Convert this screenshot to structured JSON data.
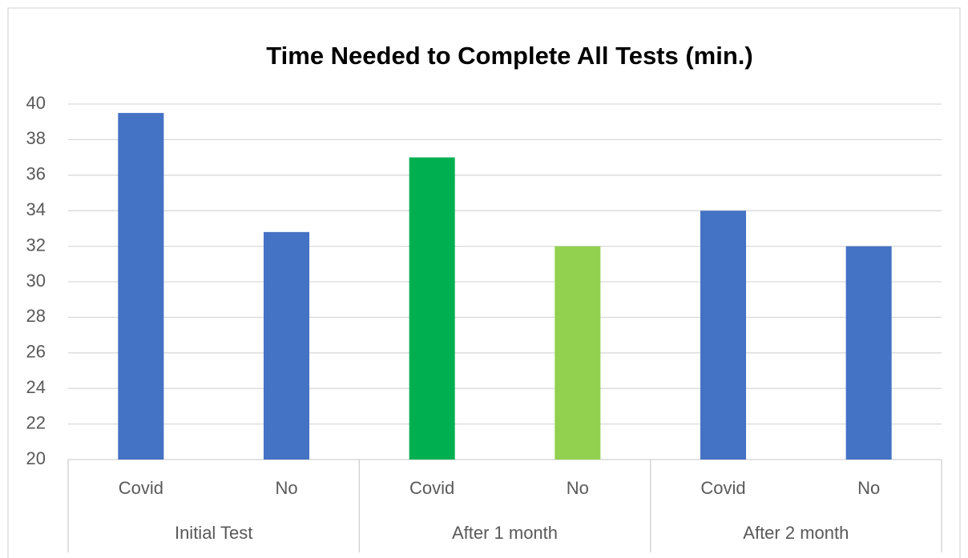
{
  "chart_data": {
    "type": "bar",
    "title": "Time Needed to Complete All Tests (min.)",
    "categories": [
      "Covid",
      "No",
      "Covid",
      "No",
      "Covid",
      "No"
    ],
    "groups": [
      "Initial Test",
      "After 1 month",
      "After 2 month"
    ],
    "values": [
      39.5,
      32.8,
      37,
      32,
      34,
      32
    ],
    "colors": [
      "#4472c4",
      "#4472c4",
      "#00b050",
      "#92d050",
      "#4472c4",
      "#4472c4"
    ],
    "ylim": [
      20,
      40
    ],
    "yticks": [
      20,
      22,
      24,
      26,
      28,
      30,
      32,
      34,
      36,
      38,
      40
    ],
    "grid": true
  }
}
